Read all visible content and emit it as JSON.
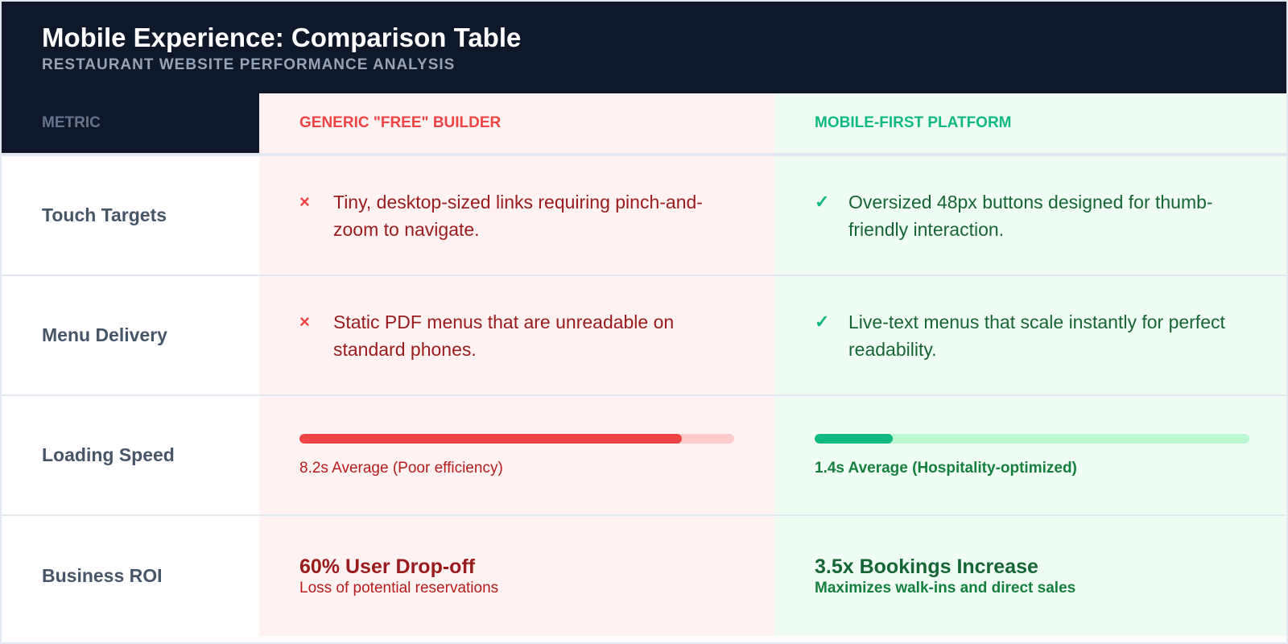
{
  "header": {
    "title": "Mobile Experience: Comparison Table",
    "subtitle": "RESTAURANT WEBSITE PERFORMANCE ANALYSIS"
  },
  "columns": {
    "metric": "METRIC",
    "bad": "GENERIC \"FREE\" BUILDER",
    "good": "MOBILE-FIRST PLATFORM"
  },
  "icons": {
    "bad": "×",
    "good": "✓",
    "bad_name": "x-icon",
    "good_name": "check-icon"
  },
  "colors": {
    "bad": "#ef4444",
    "good": "#10b981",
    "header_bg": "#0f172a"
  },
  "rows": [
    {
      "metric": "Touch Targets",
      "bad": "Tiny, desktop-sized links requiring pinch-and-zoom to navigate.",
      "good": "Oversized 48px buttons designed for thumb-friendly interaction."
    },
    {
      "metric": "Menu Delivery",
      "bad": "Static PDF menus that are unreadable on standard phones.",
      "good": "Live-text menus that scale instantly for perfect readability."
    },
    {
      "metric": "Loading Speed",
      "bad": "8.2s Average (Poor efficiency)",
      "bad_progress": 88,
      "good": "1.4s Average (Hospitality-optimized)",
      "good_progress": 18
    },
    {
      "metric": "Business ROI",
      "bad": "60% User Drop-off",
      "bad_sub": "Loss of potential reservations",
      "good": "3.5x Bookings Increase",
      "good_sub": "Maximizes walk-ins and direct sales"
    }
  ]
}
